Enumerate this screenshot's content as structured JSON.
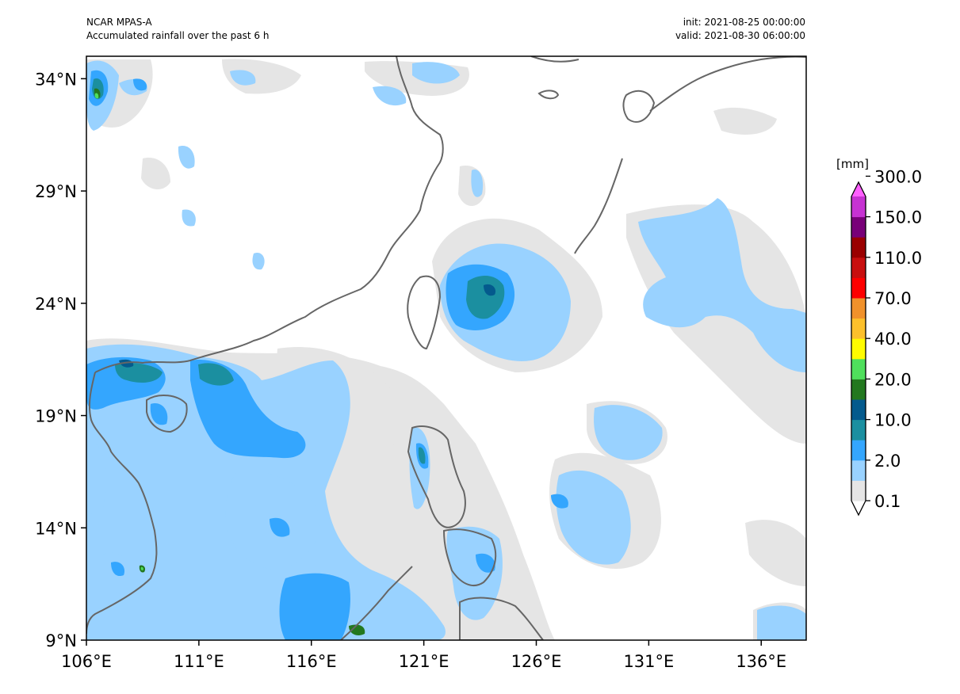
{
  "header": {
    "model": "NCAR MPAS-A",
    "field": "Accumulated rainfall over the past 6 h",
    "init": "init: 2021-08-25 00:00:00",
    "valid": "valid: 2021-08-30 06:00:00"
  },
  "map": {
    "lon_range": [
      106,
      138
    ],
    "lat_range": [
      9,
      35
    ],
    "lon_ticks": [
      {
        "value": 106,
        "label": "106°E"
      },
      {
        "value": 111,
        "label": "111°E"
      },
      {
        "value": 116,
        "label": "116°E"
      },
      {
        "value": 121,
        "label": "121°E"
      },
      {
        "value": 126,
        "label": "126°E"
      },
      {
        "value": 131,
        "label": "131°E"
      },
      {
        "value": 136,
        "label": "136°E"
      }
    ],
    "lat_ticks": [
      {
        "value": 34,
        "label": "34°N"
      },
      {
        "value": 29,
        "label": "29°N"
      },
      {
        "value": 24,
        "label": "24°N"
      },
      {
        "value": 19,
        "label": "19°N"
      },
      {
        "value": 14,
        "label": "14°N"
      },
      {
        "value": 9,
        "label": "9°N"
      }
    ]
  },
  "colorbar": {
    "units": "[mm]",
    "colors": [
      "#ffffff",
      "#e5e5e5",
      "#99d2ff",
      "#34a6fe",
      "#1b8fa0",
      "#045a8d",
      "#23781f",
      "#4fdf5c",
      "#fffb00",
      "#fcc02b",
      "#f0912b",
      "#fe0000",
      "#c80f0f",
      "#9a0000",
      "#780078",
      "#c632d2",
      "#ff5fff"
    ],
    "tick_labels": [
      "0.1",
      "2.0",
      "10.0",
      "20.0",
      "40.0",
      "70.0",
      "110.0",
      "150.0",
      "300.0"
    ]
  }
}
